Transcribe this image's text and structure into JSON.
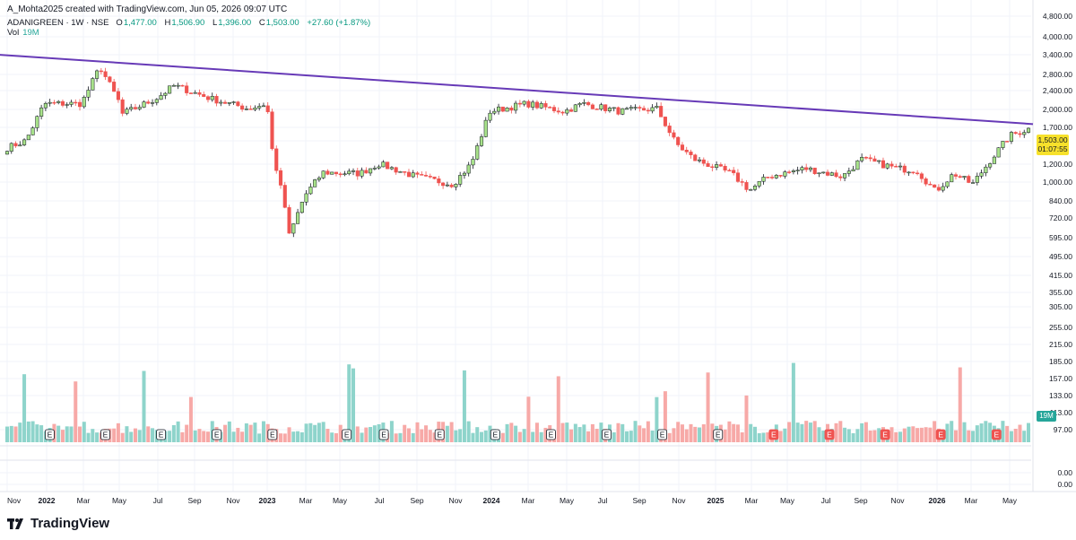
{
  "header": {
    "credit": "A_Mohta2025 created with TradingView.com, Jun 05, 2026 09:07 UTC",
    "symbol": "ADANIGREEN · 1W · NSE",
    "open_label": "O",
    "open": "1,477.00",
    "high_label": "H",
    "high": "1,506.90",
    "low_label": "L",
    "low": "1,396.00",
    "close_label": "C",
    "close": "1,503.00",
    "change": "+27.60 (+1.87%)",
    "vol_label": "Vol",
    "vol_value": "19M"
  },
  "price_tag": {
    "price": "1,503.00",
    "countdown": "01:07:55"
  },
  "brand": {
    "name": "TradingView"
  },
  "colors": {
    "up": "#26a69a",
    "down": "#ef5350",
    "up_fill": "#a8e28a",
    "trendline": "#673ab7",
    "tag": "#f7e12b"
  },
  "chart_data": {
    "type": "candlestick",
    "symbol": "ADANIGREEN",
    "interval": "1W",
    "exchange": "NSE",
    "price_scale": "log",
    "price_ticks": [
      "4,800.00",
      "4,000.00",
      "3,400.00",
      "2,800.00",
      "2,400.00",
      "2,000.00",
      "1,700.00",
      "1,503.00",
      "1,200.00",
      "1,000.00",
      "840.00",
      "720.00",
      "595.00",
      "495.00",
      "415.00",
      "355.00",
      "305.00",
      "255.00",
      "215.00",
      "185.00",
      "157.00",
      "133.00",
      "113.00",
      "97.00",
      "0.00",
      "0.00"
    ],
    "time_ticks": [
      "Nov",
      "2022",
      "Mar",
      "May",
      "Jul",
      "Sep",
      "Nov",
      "2023",
      "Mar",
      "May",
      "Jul",
      "Sep",
      "Nov",
      "2024",
      "Mar",
      "May",
      "Jul",
      "Sep",
      "Nov",
      "2025",
      "Mar",
      "May",
      "Jul",
      "Sep",
      "Nov",
      "2026",
      "Mar",
      "May"
    ],
    "trendline": {
      "from": {
        "date": "2021-10",
        "price": 3250
      },
      "to": {
        "date": "2026-06",
        "price": 1580
      }
    },
    "series": [
      {
        "name": "Price",
        "anchors": [
          [
            "2021-10",
            1150
          ],
          [
            "2021-12",
            1330
          ],
          [
            "2022-01",
            1950
          ],
          [
            "2022-03",
            1950
          ],
          [
            "2022-04",
            2850
          ],
          [
            "2022-05",
            2000
          ],
          [
            "2022-05",
            1750
          ],
          [
            "2022-07",
            2050
          ],
          [
            "2022-08",
            2350
          ],
          [
            "2022-10",
            2050
          ],
          [
            "2022-12",
            1850
          ],
          [
            "2023-01",
            1950
          ],
          [
            "2023-01",
            1300
          ],
          [
            "2023-02",
            650
          ],
          [
            "2023-02",
            500
          ],
          [
            "2023-03",
            750
          ],
          [
            "2023-04",
            960
          ],
          [
            "2023-06",
            950
          ],
          [
            "2023-07",
            1050
          ],
          [
            "2023-09",
            920
          ],
          [
            "2023-11",
            850
          ],
          [
            "2023-12",
            1050
          ],
          [
            "2024-01",
            1800
          ],
          [
            "2024-03",
            1950
          ],
          [
            "2024-05",
            1800
          ],
          [
            "2024-06",
            1950
          ],
          [
            "2024-08",
            1800
          ],
          [
            "2024-10",
            1850
          ],
          [
            "2024-11",
            1300
          ],
          [
            "2024-12",
            1100
          ],
          [
            "2025-02",
            950
          ],
          [
            "2025-03",
            800
          ],
          [
            "2025-04",
            920
          ],
          [
            "2025-06",
            1000
          ],
          [
            "2025-08",
            920
          ],
          [
            "2025-09",
            1100
          ],
          [
            "2025-11",
            1000
          ],
          [
            "2025-12",
            980
          ],
          [
            "2026-01",
            790
          ],
          [
            "2026-02",
            950
          ],
          [
            "2026-03",
            850
          ],
          [
            "2026-04",
            1100
          ],
          [
            "2026-05",
            1400
          ],
          [
            "2026-06",
            1503
          ]
        ]
      },
      {
        "name": "Vol",
        "unit": "shares",
        "last": "19M"
      }
    ],
    "earnings_marker_label": "E",
    "earnings_dates": [
      "2022-01",
      "2022-04",
      "2022-07",
      "2022-10",
      "2023-01",
      "2023-05",
      "2023-07",
      "2023-10",
      "2024-01",
      "2024-04",
      "2024-07",
      "2024-10",
      "2025-01",
      "2025-04",
      "2025-07",
      "2025-10",
      "2026-01",
      "2026-04"
    ],
    "grid": true,
    "legend": "top-left"
  }
}
